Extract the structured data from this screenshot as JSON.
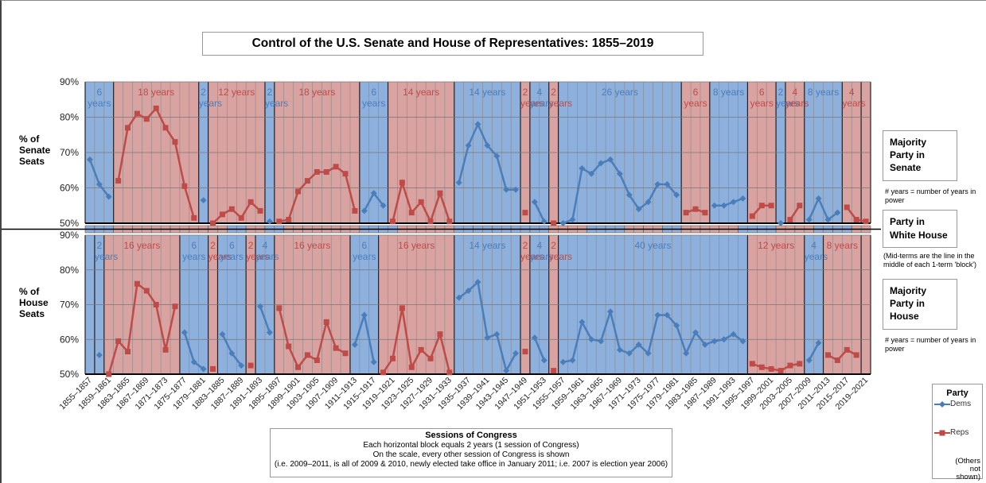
{
  "title": "Control of the U.S. Senate and House of Representatives: 1855–2019",
  "party_colors": {
    "Dems": "#8eb0dc",
    "Reps": "#d9a3a1"
  },
  "chart_data": [
    {
      "type": "line",
      "ylabel": "% of Senate Seats",
      "side_label": "Majority Party in Senate",
      "side_note": "# years = number of years in power",
      "ylim": [
        50,
        90
      ],
      "yticks": [
        {
          "value": 50,
          "label": "50%"
        },
        {
          "value": 60,
          "label": "60%"
        },
        {
          "value": 70,
          "label": "70%"
        },
        {
          "value": 80,
          "label": "80%"
        },
        {
          "value": 90,
          "label": "90%"
        }
      ],
      "series": [
        {
          "name": "Dems",
          "color": "#4a7ebb",
          "values": [
            68,
            61,
            57.5,
            null,
            null,
            null,
            null,
            null,
            null,
            null,
            null,
            null,
            56.5,
            null,
            null,
            null,
            null,
            null,
            null,
            50.5,
            null,
            null,
            null,
            null,
            null,
            null,
            null,
            null,
            null,
            53.5,
            58.5,
            55,
            null,
            null,
            null,
            null,
            null,
            null,
            null,
            61.5,
            72,
            78,
            72,
            69,
            59.5,
            59.5,
            null,
            56,
            50.5,
            null,
            50,
            51,
            65.5,
            64,
            67,
            68,
            64,
            58,
            54,
            56,
            61,
            61,
            58,
            null,
            null,
            null,
            55,
            55,
            56,
            57,
            null,
            null,
            null,
            50,
            null,
            null,
            51,
            57,
            51,
            53,
            null,
            null,
            null
          ]
        },
        {
          "name": "Reps",
          "color": "#be4b48",
          "values": [
            null,
            null,
            null,
            62,
            77,
            81,
            79.5,
            82.5,
            77,
            73,
            60.5,
            51.5,
            null,
            50,
            52.5,
            54,
            51.5,
            56,
            53.5,
            null,
            50.5,
            51,
            59,
            62,
            64.5,
            64.5,
            66,
            64,
            53.5,
            null,
            null,
            null,
            50.5,
            61.5,
            53,
            56,
            50.5,
            58.5,
            50.5,
            null,
            null,
            null,
            null,
            null,
            null,
            null,
            53,
            null,
            null,
            50,
            null,
            null,
            null,
            null,
            null,
            null,
            null,
            null,
            null,
            null,
            null,
            null,
            null,
            53,
            54,
            53,
            null,
            null,
            null,
            null,
            52,
            55,
            55,
            null,
            51,
            55,
            null,
            null,
            null,
            null,
            54.5,
            51,
            50.5
          ]
        }
      ],
      "blocks": [
        {
          "party": "Dems",
          "years": 6,
          "label": "6 years"
        },
        {
          "party": "Reps",
          "years": 18,
          "label": "18 years"
        },
        {
          "party": "Dems",
          "years": 2,
          "label": "2 years"
        },
        {
          "party": "Reps",
          "years": 12,
          "label": "12 years"
        },
        {
          "party": "Dems",
          "years": 2,
          "label": "2 years"
        },
        {
          "party": "Reps",
          "years": 18,
          "label": "18 years"
        },
        {
          "party": "Dems",
          "years": 6,
          "label": "6 years"
        },
        {
          "party": "Reps",
          "years": 14,
          "label": "14 years"
        },
        {
          "party": "Dems",
          "years": 14,
          "label": "14 years"
        },
        {
          "party": "Reps",
          "years": 2,
          "label": "2 years"
        },
        {
          "party": "Dems",
          "years": 4,
          "label": "4 years"
        },
        {
          "party": "Reps",
          "years": 2,
          "label": "2 years"
        },
        {
          "party": "Dems",
          "years": 26,
          "label": "26 years"
        },
        {
          "party": "Reps",
          "years": 6,
          "label": "6 years"
        },
        {
          "party": "Dems",
          "years": 8,
          "label": "8 years"
        },
        {
          "party": "Reps",
          "years": 6,
          "label": "6 years"
        },
        {
          "party": "Dems",
          "years": 2,
          "label": "2 years"
        },
        {
          "party": "Reps",
          "years": 4,
          "label": "4 years"
        },
        {
          "party": "Dems",
          "years": 8,
          "label": "8 years"
        },
        {
          "party": "Reps",
          "years": 4,
          "label": "4 years"
        },
        {
          "party": "Reps",
          "years": 2
        }
      ]
    },
    {
      "type": "line",
      "ylabel": "% of House Seats",
      "side_label": "Majority Party in House",
      "side_note": "# years = number of years in power",
      "ylim": [
        50,
        90
      ],
      "yticks": [
        {
          "value": 50,
          "label": "50%"
        },
        {
          "value": 60,
          "label": "60%"
        },
        {
          "value": 70,
          "label": "70%"
        },
        {
          "value": 80,
          "label": "80%"
        },
        {
          "value": 90,
          "label": "90%"
        }
      ],
      "categories": [
        "1855–1857",
        null,
        "1859–1861",
        null,
        "1863–1865",
        null,
        "1867–1869",
        null,
        "1871–1873",
        null,
        "1875–1877",
        null,
        "1879–1881",
        null,
        "1883–1885",
        null,
        "1887–1889",
        null,
        "1891–1893",
        null,
        "1895–1897",
        null,
        "1899–1901",
        null,
        "1903–1905",
        null,
        "1907–1909",
        null,
        "1911–1913",
        null,
        "1915–1917",
        null,
        "1919–1921",
        null,
        "1923–1925",
        null,
        "1927–1929",
        null,
        "1931–1933",
        null,
        "1935–1937",
        null,
        "1939–1941",
        null,
        "1943–1945",
        null,
        "1947–1949",
        null,
        "1951–1953",
        null,
        "1955–1957",
        null,
        "1959–1961",
        null,
        "1963–1965",
        null,
        "1967–1969",
        null,
        "1971–1973",
        null,
        "1975–1977",
        null,
        "1979–1981",
        null,
        "1983–1985",
        null,
        "1987–1989",
        null,
        "1991–1993",
        null,
        "1995–1997",
        null,
        "1999–2001",
        null,
        "2003–2005",
        null,
        "2007–2009",
        null,
        "2011–2013",
        null,
        "2015–2017",
        null,
        "2019–2021"
      ],
      "series": [
        {
          "name": "Dems",
          "color": "#4a7ebb",
          "values": [
            null,
            55.5,
            null,
            null,
            null,
            null,
            null,
            null,
            null,
            null,
            62,
            53.5,
            51.5,
            null,
            61.5,
            56,
            52.5,
            null,
            69.5,
            62,
            null,
            null,
            null,
            null,
            null,
            null,
            null,
            null,
            58.5,
            67,
            53.5,
            null,
            null,
            null,
            null,
            null,
            null,
            null,
            null,
            72,
            74,
            76.5,
            60.5,
            61.5,
            51,
            56,
            null,
            60.5,
            54,
            null,
            53.5,
            54,
            65,
            60,
            59.5,
            68,
            57,
            56,
            58.5,
            56,
            67,
            67,
            64,
            56,
            62,
            58.5,
            59.5,
            60,
            61.5,
            59.5,
            null,
            null,
            null,
            null,
            null,
            null,
            54,
            59,
            null,
            null,
            null,
            null,
            null
          ]
        },
        {
          "name": "Reps",
          "color": "#be4b48",
          "values": [
            null,
            null,
            50,
            59.5,
            56.5,
            76,
            74,
            70,
            57,
            69.5,
            null,
            null,
            null,
            51.5,
            null,
            null,
            null,
            52.5,
            null,
            null,
            69,
            58,
            52,
            55.5,
            54,
            65,
            57.5,
            56,
            null,
            null,
            null,
            50.5,
            54.5,
            69,
            52,
            57,
            54.5,
            61.5,
            50.5,
            null,
            null,
            null,
            null,
            null,
            null,
            null,
            56.5,
            null,
            null,
            51,
            null,
            null,
            null,
            null,
            null,
            null,
            null,
            null,
            null,
            null,
            null,
            null,
            null,
            null,
            null,
            null,
            null,
            null,
            null,
            null,
            53,
            52,
            51.5,
            51,
            52.5,
            53,
            null,
            null,
            55.5,
            54,
            57,
            55.5,
            null
          ]
        }
      ],
      "blocks": [
        {
          "party": "Dems",
          "years": 2
        },
        {
          "party": "Dems",
          "years": 2,
          "label": "2 years"
        },
        {
          "party": "Reps",
          "years": 16,
          "label": "16 years"
        },
        {
          "party": "Dems",
          "years": 6,
          "label": "6 years"
        },
        {
          "party": "Reps",
          "years": 2,
          "label": "2 years"
        },
        {
          "party": "Dems",
          "years": 6,
          "label": "6 years"
        },
        {
          "party": "Reps",
          "years": 2,
          "label": "2 years"
        },
        {
          "party": "Dems",
          "years": 4,
          "label": "4 years"
        },
        {
          "party": "Reps",
          "years": 16,
          "label": "16 years"
        },
        {
          "party": "Dems",
          "years": 6,
          "label": "6 years"
        },
        {
          "party": "Reps",
          "years": 16,
          "label": "16 years"
        },
        {
          "party": "Dems",
          "years": 14,
          "label": "14 years"
        },
        {
          "party": "Reps",
          "years": 2,
          "label": "2 years"
        },
        {
          "party": "Dems",
          "years": 4,
          "label": "4 years"
        },
        {
          "party": "Reps",
          "years": 2,
          "label": "2 years"
        },
        {
          "party": "Dems",
          "years": 40,
          "label": "40 years"
        },
        {
          "party": "Reps",
          "years": 12,
          "label": "12 years"
        },
        {
          "party": "Dems",
          "years": 4,
          "label": "4 years"
        },
        {
          "party": "Reps",
          "years": 8,
          "label": "8 years"
        },
        {
          "party": "Reps",
          "years": 2
        }
      ]
    }
  ],
  "white_house": {
    "label": "Party in White House",
    "note": "(Mid-terms are the line in the middle of each 1-term 'block')",
    "terms": [
      {
        "party": "Dems",
        "years": 2
      },
      {
        "party": "Dems",
        "years": 4
      },
      {
        "party": "Reps",
        "years": 4
      },
      {
        "party": "Reps",
        "years": 4
      },
      {
        "party": "Reps",
        "years": 4
      },
      {
        "party": "Reps",
        "years": 4
      },
      {
        "party": "Reps",
        "years": 4
      },
      {
        "party": "Reps",
        "years": 4
      },
      {
        "party": "Dems",
        "years": 4
      },
      {
        "party": "Reps",
        "years": 4
      },
      {
        "party": "Dems",
        "years": 4
      },
      {
        "party": "Reps",
        "years": 4
      },
      {
        "party": "Reps",
        "years": 4
      },
      {
        "party": "Reps",
        "years": 4
      },
      {
        "party": "Reps",
        "years": 4
      },
      {
        "party": "Dems",
        "years": 4
      },
      {
        "party": "Dems",
        "years": 4
      },
      {
        "party": "Reps",
        "years": 4
      },
      {
        "party": "Reps",
        "years": 4
      },
      {
        "party": "Reps",
        "years": 4
      },
      {
        "party": "Dems",
        "years": 4
      },
      {
        "party": "Dems",
        "years": 4
      },
      {
        "party": "Dems",
        "years": 4
      },
      {
        "party": "Dems",
        "years": 4
      },
      {
        "party": "Dems",
        "years": 4
      },
      {
        "party": "Reps",
        "years": 4
      },
      {
        "party": "Reps",
        "years": 4
      },
      {
        "party": "Dems",
        "years": 4
      },
      {
        "party": "Dems",
        "years": 4
      },
      {
        "party": "Reps",
        "years": 4
      },
      {
        "party": "Reps",
        "years": 4
      },
      {
        "party": "Dems",
        "years": 4
      },
      {
        "party": "Reps",
        "years": 4
      },
      {
        "party": "Reps",
        "years": 4
      },
      {
        "party": "Reps",
        "years": 4
      },
      {
        "party": "Dems",
        "years": 4
      },
      {
        "party": "Dems",
        "years": 4
      },
      {
        "party": "Reps",
        "years": 4
      },
      {
        "party": "Reps",
        "years": 4
      },
      {
        "party": "Dems",
        "years": 4
      },
      {
        "party": "Dems",
        "years": 4
      },
      {
        "party": "Reps",
        "years": 4
      }
    ]
  },
  "xlabel_box": {
    "title": "Sessions of Congress",
    "lines": [
      "Each horizontal block equals 2 years (1 session of Congress)",
      "On the scale, every other session of Congress is shown",
      "(i.e. 2009–2011, is all of 2009 & 2010, newly elected take office in January 2011; i.e. 2007 is election year 2006)"
    ]
  },
  "legend": {
    "title": "Party",
    "note": "(Others not shown)"
  }
}
